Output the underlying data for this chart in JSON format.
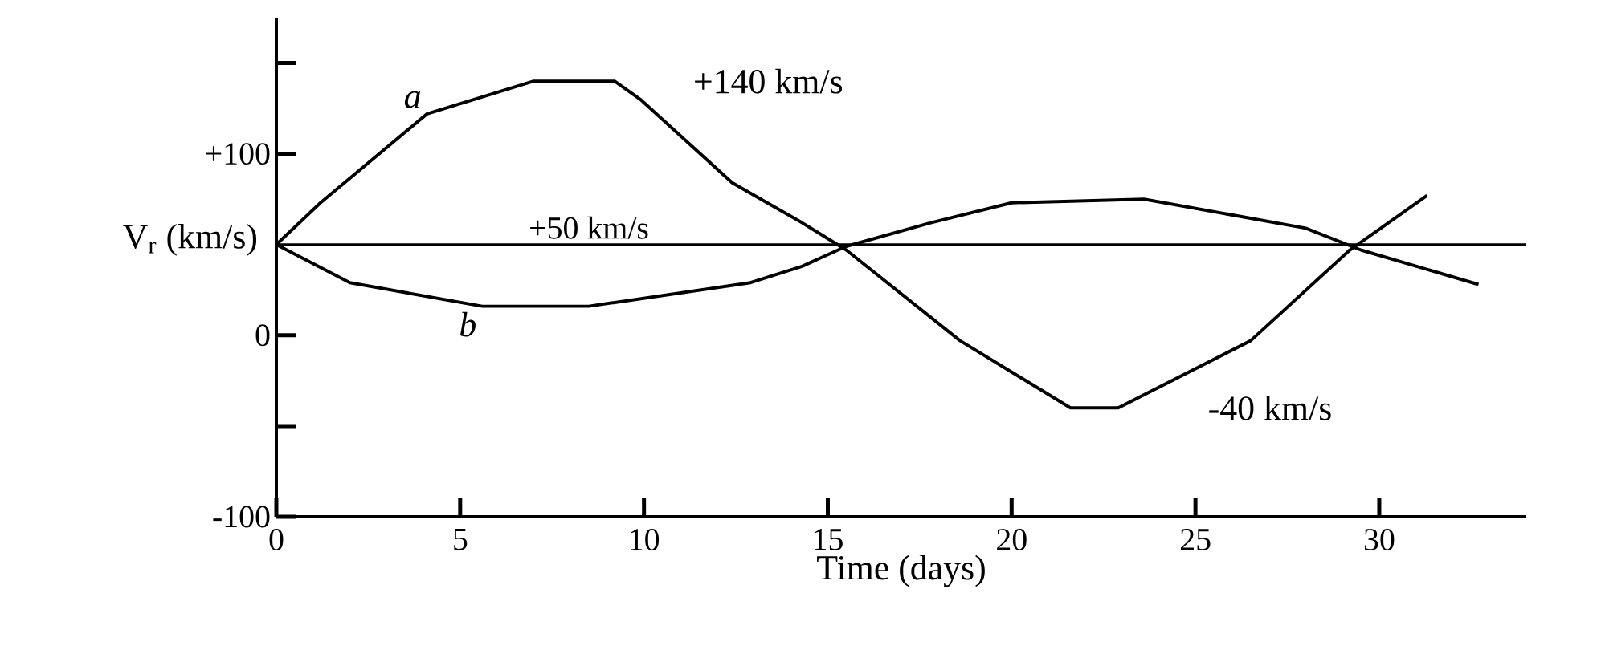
{
  "chart_data": {
    "type": "line",
    "xlabel": "Time (days)",
    "ylabel": "V$_{r}$ (km/s)",
    "xlim": [
      0,
      34
    ],
    "ylim": [
      -100,
      175
    ],
    "xticks": [
      0,
      5,
      10,
      15,
      20,
      25,
      30
    ],
    "yticks": [
      {
        "value": 150,
        "label": null
      },
      {
        "value": 100,
        "label": "+100"
      },
      {
        "value": 0,
        "label": "0"
      },
      {
        "value": -50,
        "label": null
      },
      {
        "value": -100,
        "label": "-100"
      }
    ],
    "grid": false,
    "legend": false,
    "marker": "none",
    "line_style": "solid",
    "series": [
      {
        "name": "a",
        "color": "#000000",
        "x": [
          0,
          1.2,
          4.1,
          7.0,
          9.2,
          9.9,
          12.4,
          14.3,
          15.5,
          18.6,
          21.6,
          22.9,
          26.5,
          29.2,
          31.3
        ],
        "values": [
          50,
          73,
          122,
          140,
          140,
          130,
          84,
          62,
          47,
          -3,
          -40,
          -40,
          -3,
          47,
          77
        ]
      },
      {
        "name": "b",
        "color": "#000000",
        "x": [
          0,
          2.0,
          5.6,
          8.5,
          12.9,
          14.3,
          15.5,
          17.8,
          20.0,
          23.6,
          28.0,
          29.5,
          32.7
        ],
        "values": [
          50,
          29,
          16,
          16,
          29,
          38,
          49,
          62,
          73,
          75,
          59,
          47,
          28
        ]
      }
    ],
    "ref_lines": [
      {
        "axis": "y",
        "value": 50,
        "label": "+50 km/s",
        "color": "#000000"
      }
    ],
    "annotations": [
      {
        "text": "+140 km/s",
        "x": 9,
        "y": 140
      },
      {
        "text": "-40 km/s",
        "x": 23,
        "y": -40
      }
    ]
  }
}
